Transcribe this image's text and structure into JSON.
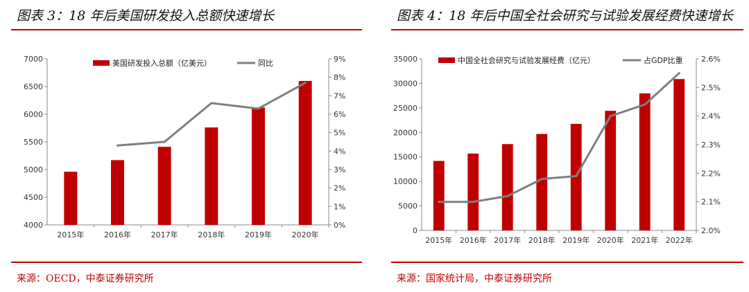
{
  "left": {
    "title": "图表 3：18 年后美国研发投入总额快速增长",
    "source": "来源：OECD，中泰证券研究所",
    "chart_data": {
      "type": "bar",
      "categories": [
        "2015年",
        "2016年",
        "2017年",
        "2018年",
        "2019年",
        "2020年"
      ],
      "series": [
        {
          "name": "美国研发投入总额（亿美元）",
          "type": "bar",
          "axis": "left",
          "color": "#c00000",
          "values": [
            4960,
            5170,
            5410,
            5760,
            6120,
            6600
          ]
        },
        {
          "name": "同比",
          "type": "line",
          "axis": "right",
          "color": "#7f7f7f",
          "values": [
            null,
            4.3,
            4.5,
            6.6,
            6.3,
            7.7
          ]
        }
      ],
      "left_axis": {
        "min": 4000,
        "max": 7000,
        "ticks": [
          4000,
          4500,
          5000,
          5500,
          6000,
          6500,
          7000
        ]
      },
      "right_axis": {
        "min": 0,
        "max": 9,
        "ticks": [
          "0%",
          "1%",
          "2%",
          "3%",
          "4%",
          "5%",
          "6%",
          "7%",
          "8%",
          "9%"
        ]
      },
      "grid": false,
      "legend": "top"
    }
  },
  "right": {
    "title": "图表 4：18 年后中国全社会研究与试验发展经费快速增长",
    "source": "来源：国家统计局，中泰证券研究所",
    "chart_data": {
      "type": "bar",
      "categories": [
        "2015年",
        "2016年",
        "2017年",
        "2018年",
        "2019年",
        "2020年",
        "2021年",
        "2022年"
      ],
      "series": [
        {
          "name": "中国全社会研究与试验发展经费（亿元）",
          "type": "bar",
          "axis": "left",
          "color": "#c00000",
          "values": [
            14170,
            15677,
            17606,
            19678,
            21737,
            24393,
            27956,
            30870
          ]
        },
        {
          "name": "占GDP比重",
          "type": "line",
          "axis": "right",
          "color": "#7f7f7f",
          "values": [
            2.1,
            2.1,
            2.12,
            2.18,
            2.19,
            2.4,
            2.44,
            2.55
          ]
        }
      ],
      "left_axis": {
        "min": 0,
        "max": 35000,
        "ticks": [
          0,
          5000,
          10000,
          15000,
          20000,
          25000,
          30000,
          35000
        ]
      },
      "right_axis": {
        "min": 2.0,
        "max": 2.6,
        "ticks": [
          "2.0%",
          "2.1%",
          "2.2%",
          "2.3%",
          "2.4%",
          "2.5%",
          "2.6%"
        ]
      },
      "grid": false,
      "legend": "top"
    }
  }
}
